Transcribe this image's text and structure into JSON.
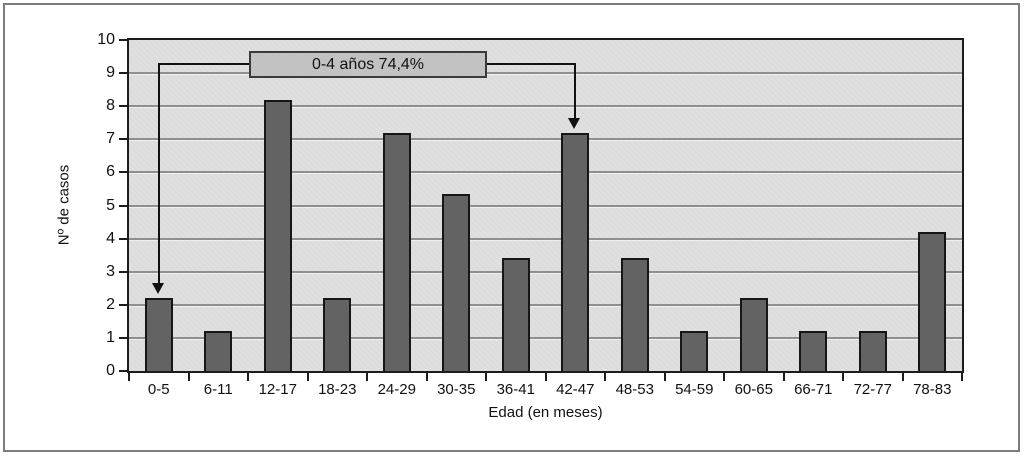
{
  "chart_data": {
    "type": "bar",
    "title": "",
    "categories": [
      "0-5",
      "6-11",
      "12-17",
      "18-23",
      "24-29",
      "30-35",
      "36-41",
      "42-47",
      "48-53",
      "54-59",
      "60-65",
      "66-71",
      "72-77",
      "78-83"
    ],
    "values": [
      2.2,
      1.2,
      8.2,
      2.2,
      7.2,
      5.35,
      3.4,
      7.2,
      3.4,
      1.2,
      2.2,
      1.2,
      1.2,
      4.2
    ],
    "xlabel": "Edad (en meses)",
    "ylabel": "Nº de casos",
    "ylim": [
      0,
      10
    ],
    "yticks": [
      0,
      1,
      2,
      3,
      4,
      5,
      6,
      7,
      8,
      9,
      10
    ],
    "grid": true,
    "legend": false,
    "annotation": {
      "label": "0-4 años 74,4%",
      "arrow_targets": [
        "0-5",
        "42-47"
      ]
    },
    "colors": {
      "bar_fill": "#636363",
      "bar_border": "#161616",
      "plot_background": "#dfdfdf",
      "gridline": "#8f8f8f",
      "axis": "#1c1c1c",
      "annotation_fill": "#c2c2c2",
      "annotation_border": "#3a3a3a",
      "frame_border": "#7d7d7d",
      "page_background": "#ffffff"
    }
  }
}
